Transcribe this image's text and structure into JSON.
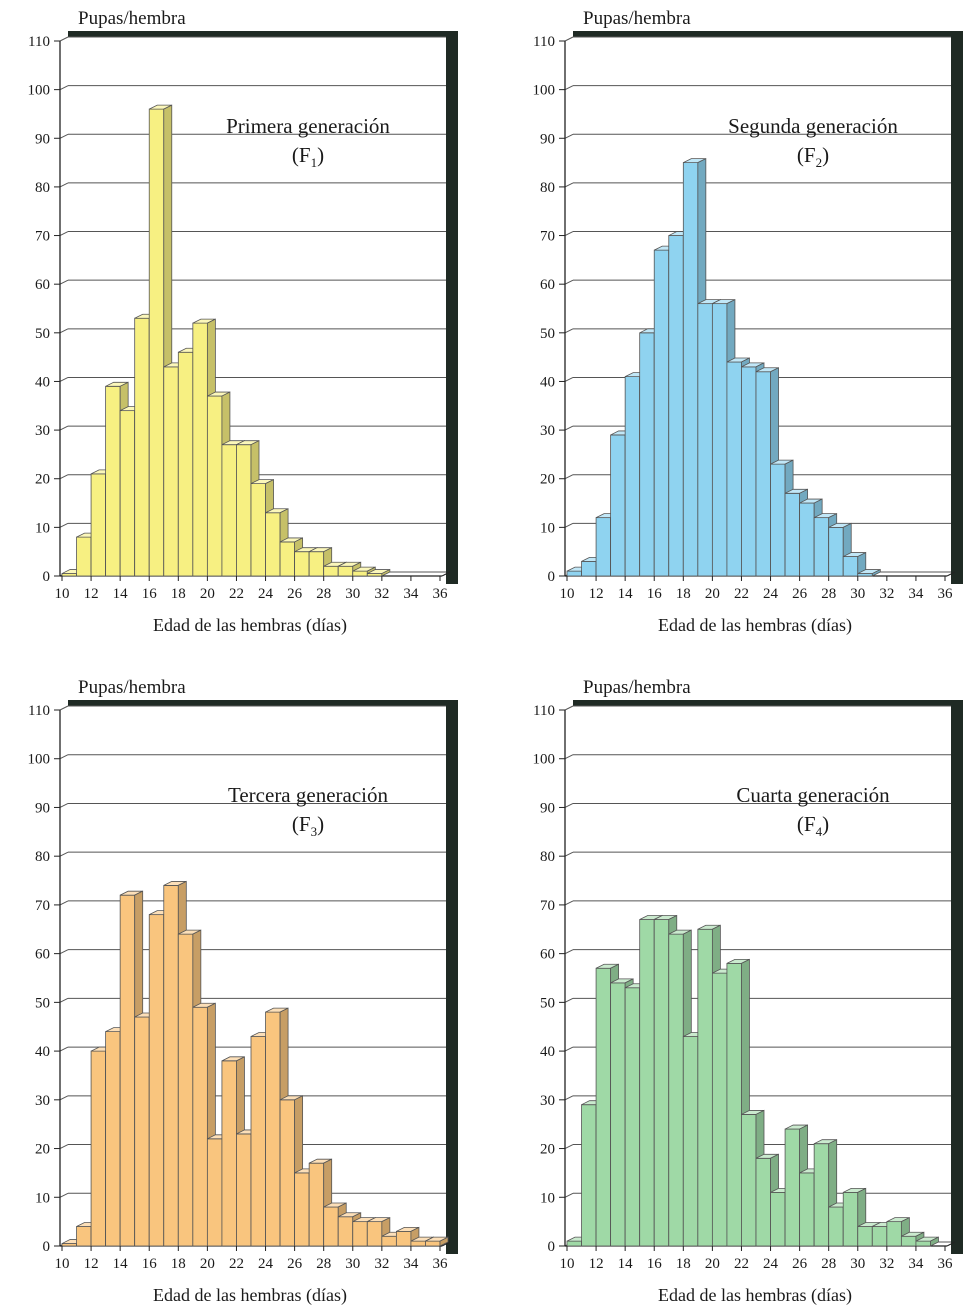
{
  "chart_data": [
    {
      "type": "bar",
      "title": "Primera generación",
      "subtitle_main": "(F",
      "subtitle_sub": "1",
      "subtitle_end": ")",
      "ylabel": "Pupas/hembra",
      "xlabel": "Edad de las hembras (días)",
      "ylim": [
        0,
        110
      ],
      "yticks": [
        0,
        10,
        20,
        30,
        40,
        50,
        60,
        70,
        80,
        90,
        100,
        110
      ],
      "xticks": [
        10,
        12,
        14,
        16,
        18,
        20,
        22,
        24,
        26,
        28,
        30,
        32,
        34,
        36
      ],
      "x": [
        10,
        11,
        12,
        13,
        14,
        15,
        16,
        17,
        18,
        19,
        20,
        21,
        22,
        23,
        24,
        25,
        26,
        27,
        28,
        29,
        30,
        31,
        32,
        33,
        34,
        35
      ],
      "values": [
        0.5,
        8,
        21,
        39,
        34,
        53,
        96,
        43,
        46,
        52,
        37,
        27,
        27,
        19,
        13,
        7,
        5,
        5,
        2,
        2,
        1,
        0.5,
        0,
        0,
        0,
        0
      ],
      "color": "#f7f082",
      "grid": true
    },
    {
      "type": "bar",
      "title": "Segunda generación",
      "subtitle_main": "(F",
      "subtitle_sub": "2",
      "subtitle_end": ")",
      "ylabel": "Pupas/hembra",
      "xlabel": "Edad de las hembras (días)",
      "ylim": [
        0,
        110
      ],
      "yticks": [
        0,
        10,
        20,
        30,
        40,
        50,
        60,
        70,
        80,
        90,
        100,
        110
      ],
      "xticks": [
        10,
        12,
        14,
        16,
        18,
        20,
        22,
        24,
        26,
        28,
        30,
        32,
        34,
        36
      ],
      "x": [
        10,
        11,
        12,
        13,
        14,
        15,
        16,
        17,
        18,
        19,
        20,
        21,
        22,
        23,
        24,
        25,
        26,
        27,
        28,
        29,
        30,
        31,
        32,
        33,
        34,
        35
      ],
      "values": [
        1,
        3,
        12,
        29,
        41,
        50,
        67,
        70,
        85,
        56,
        56,
        44,
        43,
        42,
        23,
        17,
        15,
        12,
        10,
        4,
        0.5,
        0,
        0,
        0,
        0,
        0
      ],
      "color": "#8fd3f0",
      "grid": true
    },
    {
      "type": "bar",
      "title": "Tercera generación",
      "subtitle_main": "(F",
      "subtitle_sub": "3",
      "subtitle_end": ")",
      "ylabel": "Pupas/hembra",
      "xlabel": "Edad de las hembras (días)",
      "ylim": [
        0,
        110
      ],
      "yticks": [
        0,
        10,
        20,
        30,
        40,
        50,
        60,
        70,
        80,
        90,
        100,
        110
      ],
      "xticks": [
        10,
        12,
        14,
        16,
        18,
        20,
        22,
        24,
        26,
        28,
        30,
        32,
        34,
        36
      ],
      "x": [
        10,
        11,
        12,
        13,
        14,
        15,
        16,
        17,
        18,
        19,
        20,
        21,
        22,
        23,
        24,
        25,
        26,
        27,
        28,
        29,
        30,
        31,
        32,
        33,
        34,
        35
      ],
      "values": [
        0.5,
        4,
        40,
        44,
        72,
        47,
        68,
        74,
        64,
        49,
        22,
        38,
        23,
        43,
        48,
        30,
        15,
        17,
        8,
        6,
        5,
        5,
        2,
        3,
        1,
        1
      ],
      "color": "#f9c57e",
      "grid": true
    },
    {
      "type": "bar",
      "title": "Cuarta generación",
      "subtitle_main": "(F",
      "subtitle_sub": "4",
      "subtitle_end": ")",
      "ylabel": "Pupas/hembra",
      "xlabel": "Edad de las hembras (días)",
      "ylim": [
        0,
        110
      ],
      "yticks": [
        0,
        10,
        20,
        30,
        40,
        50,
        60,
        70,
        80,
        90,
        100,
        110
      ],
      "xticks": [
        10,
        12,
        14,
        16,
        18,
        20,
        22,
        24,
        26,
        28,
        30,
        32,
        34,
        36
      ],
      "x": [
        10,
        11,
        12,
        13,
        14,
        15,
        16,
        17,
        18,
        19,
        20,
        21,
        22,
        23,
        24,
        25,
        26,
        27,
        28,
        29,
        30,
        31,
        32,
        33,
        34,
        35
      ],
      "values": [
        1,
        29,
        57,
        54,
        53,
        67,
        67,
        64,
        43,
        65,
        56,
        58,
        27,
        18,
        11,
        24,
        15,
        21,
        8,
        11,
        4,
        4,
        5,
        2,
        1,
        0
      ],
      "color": "#9fd9a6",
      "grid": true
    }
  ]
}
